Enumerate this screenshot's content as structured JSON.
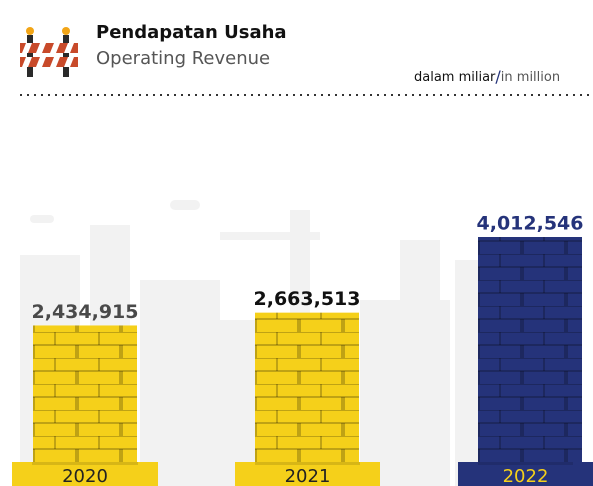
{
  "chart_data": {
    "type": "bar",
    "title": "Pendapatan Usaha",
    "subtitle": "Operating Revenue",
    "unit": {
      "local": "dalam miliar",
      "separator": "/",
      "english": "in million"
    },
    "categories": [
      "2020",
      "2021",
      "2022"
    ],
    "values": [
      2434915,
      2663513,
      4012546
    ],
    "value_labels": [
      "2,434,915",
      "2,663,513",
      "4,012,546"
    ],
    "colors": [
      "#f5d01a",
      "#f5d01a",
      "#25337a"
    ],
    "label_colors": [
      "#4a4a4a",
      "#111111",
      "#25337a"
    ]
  }
}
